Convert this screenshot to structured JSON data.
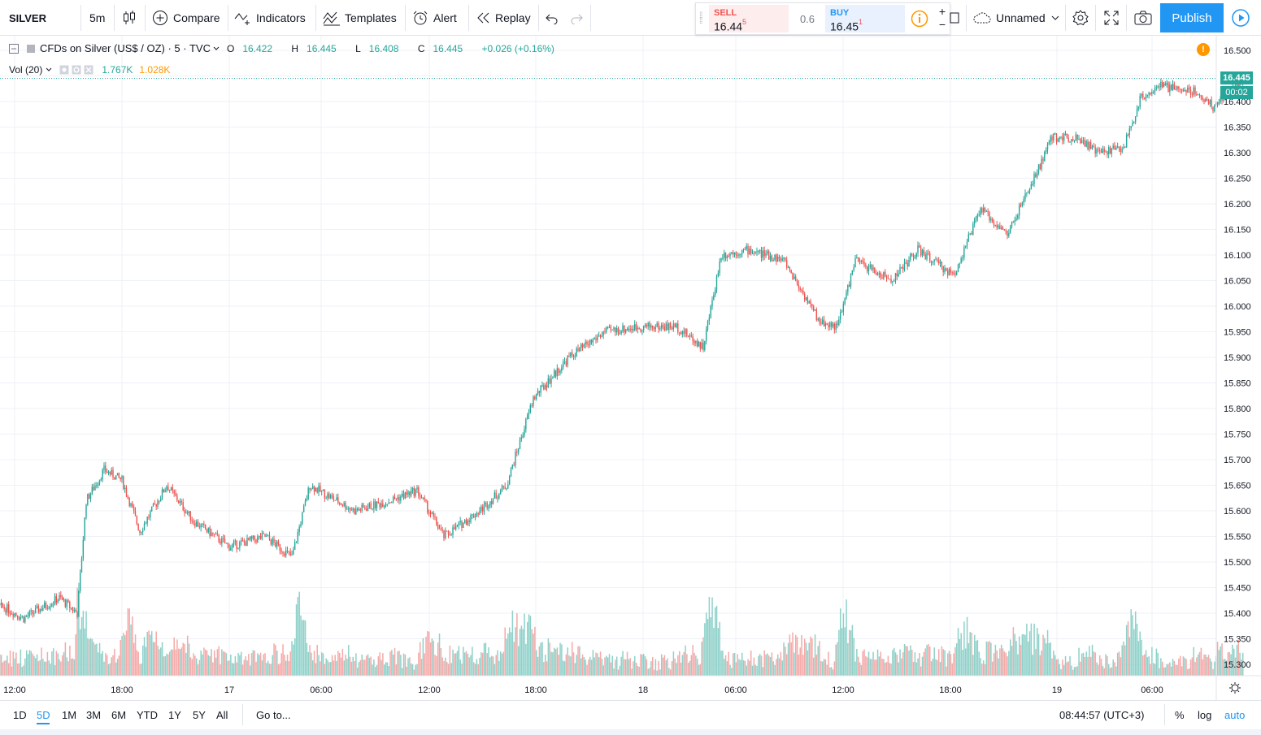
{
  "toolbar": {
    "symbol": "SILVER",
    "interval": "5m",
    "compare_label": "Compare",
    "indicators_label": "Indicators",
    "templates_label": "Templates",
    "alert_label": "Alert",
    "replay_label": "Replay",
    "layout_name": "Unnamed",
    "publish_label": "Publish"
  },
  "trade": {
    "sell_label": "SELL",
    "sell_price": "16.44",
    "sell_sup": "5",
    "spread": "0.6",
    "buy_label": "BUY",
    "buy_price": "16.45",
    "buy_sup": "1",
    "plus": "+",
    "minus": "−"
  },
  "legend": {
    "title": "CFDs on Silver (US$ / OZ) · 5 · TVC",
    "o_label": "O",
    "o": "16.422",
    "h_label": "H",
    "h": "16.445",
    "l_label": "L",
    "l": "16.408",
    "c_label": "C",
    "c": "16.445",
    "change": "+0.026 (+0.16%)",
    "vol_label": "Vol (20)",
    "vol_value": "1.767K",
    "vol_ma": "1.028K",
    "alert_mark": "!"
  },
  "price_axis": {
    "last_price": "16.445",
    "countdown": "00:02"
  },
  "bottom": {
    "ranges": [
      "1D",
      "5D",
      "1M",
      "3M",
      "6M",
      "YTD",
      "1Y",
      "5Y",
      "All"
    ],
    "active_range": "5D",
    "goto": "Go to...",
    "clock": "08:44:57 (UTC+3)",
    "percent": "%",
    "log": "log",
    "auto": "auto"
  },
  "colors": {
    "up": "#26a69a",
    "down": "#ef5350",
    "vol_up": "#8ed1c9",
    "vol_down": "#f5a9a8",
    "accent": "#2196f3",
    "grid": "#eef1f6"
  },
  "chart_data": {
    "type": "candlestick",
    "symbol": "CFDs on Silver (US$ / OZ)",
    "interval": "5",
    "source": "TVC",
    "ylim": [
      15.28,
      16.52
    ],
    "y_ticks": [
      "15.300",
      "15.350",
      "15.400",
      "15.450",
      "15.500",
      "15.550",
      "15.600",
      "15.650",
      "15.700",
      "15.750",
      "15.800",
      "15.850",
      "15.900",
      "15.950",
      "16.000",
      "16.050",
      "16.100",
      "16.150",
      "16.200",
      "16.250",
      "16.300",
      "16.350",
      "16.400",
      "16.450",
      "16.500"
    ],
    "x_ticks": [
      "12:00",
      "18:00",
      "17",
      "06:00",
      "12:00",
      "18:00",
      "18",
      "06:00",
      "12:00",
      "18:00",
      "19",
      "06:00"
    ],
    "approx_close_path": [
      {
        "t": "16 10:00",
        "price": 15.42
      },
      {
        "t": "16 11:30",
        "price": 15.41
      },
      {
        "t": "16 12:30",
        "price": 15.39
      },
      {
        "t": "16 14:30",
        "price": 15.43
      },
      {
        "t": "16 15:30",
        "price": 15.4
      },
      {
        "t": "16 16:00",
        "price": 15.62
      },
      {
        "t": "16 17:00",
        "price": 15.68
      },
      {
        "t": "16 18:00",
        "price": 15.66
      },
      {
        "t": "16 19:00",
        "price": 15.56
      },
      {
        "t": "16 20:30",
        "price": 15.65
      },
      {
        "t": "16 22:00",
        "price": 15.58
      },
      {
        "t": "17 00:00",
        "price": 15.53
      },
      {
        "t": "17 02:00",
        "price": 15.55
      },
      {
        "t": "17 03:30",
        "price": 15.51
      },
      {
        "t": "17 04:30",
        "price": 15.65
      },
      {
        "t": "17 07:00",
        "price": 15.6
      },
      {
        "t": "17 09:00",
        "price": 15.62
      },
      {
        "t": "17 10:30",
        "price": 15.64
      },
      {
        "t": "17 12:00",
        "price": 15.55
      },
      {
        "t": "17 14:00",
        "price": 15.6
      },
      {
        "t": "17 15:30",
        "price": 15.65
      },
      {
        "t": "17 17:00",
        "price": 15.82
      },
      {
        "t": "17 18:00",
        "price": 15.86
      },
      {
        "t": "17 19:00",
        "price": 15.9
      },
      {
        "t": "17 21:00",
        "price": 15.95
      },
      {
        "t": "17 23:00",
        "price": 15.96
      },
      {
        "t": "18 01:00",
        "price": 15.96
      },
      {
        "t": "18 02:30",
        "price": 15.92
      },
      {
        "t": "18 03:30",
        "price": 16.1
      },
      {
        "t": "18 05:00",
        "price": 16.11
      },
      {
        "t": "18 07:00",
        "price": 16.09
      },
      {
        "t": "18 09:00",
        "price": 15.97
      },
      {
        "t": "18 10:00",
        "price": 15.96
      },
      {
        "t": "18 11:00",
        "price": 16.09
      },
      {
        "t": "18 13:00",
        "price": 16.05
      },
      {
        "t": "18 14:30",
        "price": 16.11
      },
      {
        "t": "18 16:30",
        "price": 16.06
      },
      {
        "t": "18 18:00",
        "price": 16.19
      },
      {
        "t": "18 19:30",
        "price": 16.14
      },
      {
        "t": "18 21:00",
        "price": 16.25
      },
      {
        "t": "18 22:00",
        "price": 16.33
      },
      {
        "t": "18 23:30",
        "price": 16.33
      },
      {
        "t": "19 00:30",
        "price": 16.3
      },
      {
        "t": "19 02:00",
        "price": 16.31
      },
      {
        "t": "19 03:00",
        "price": 16.41
      },
      {
        "t": "19 04:00",
        "price": 16.43
      },
      {
        "t": "19 06:00",
        "price": 16.42
      },
      {
        "t": "19 07:00",
        "price": 16.39
      },
      {
        "t": "19 08:40",
        "price": 16.445
      }
    ],
    "last": 16.445
  }
}
